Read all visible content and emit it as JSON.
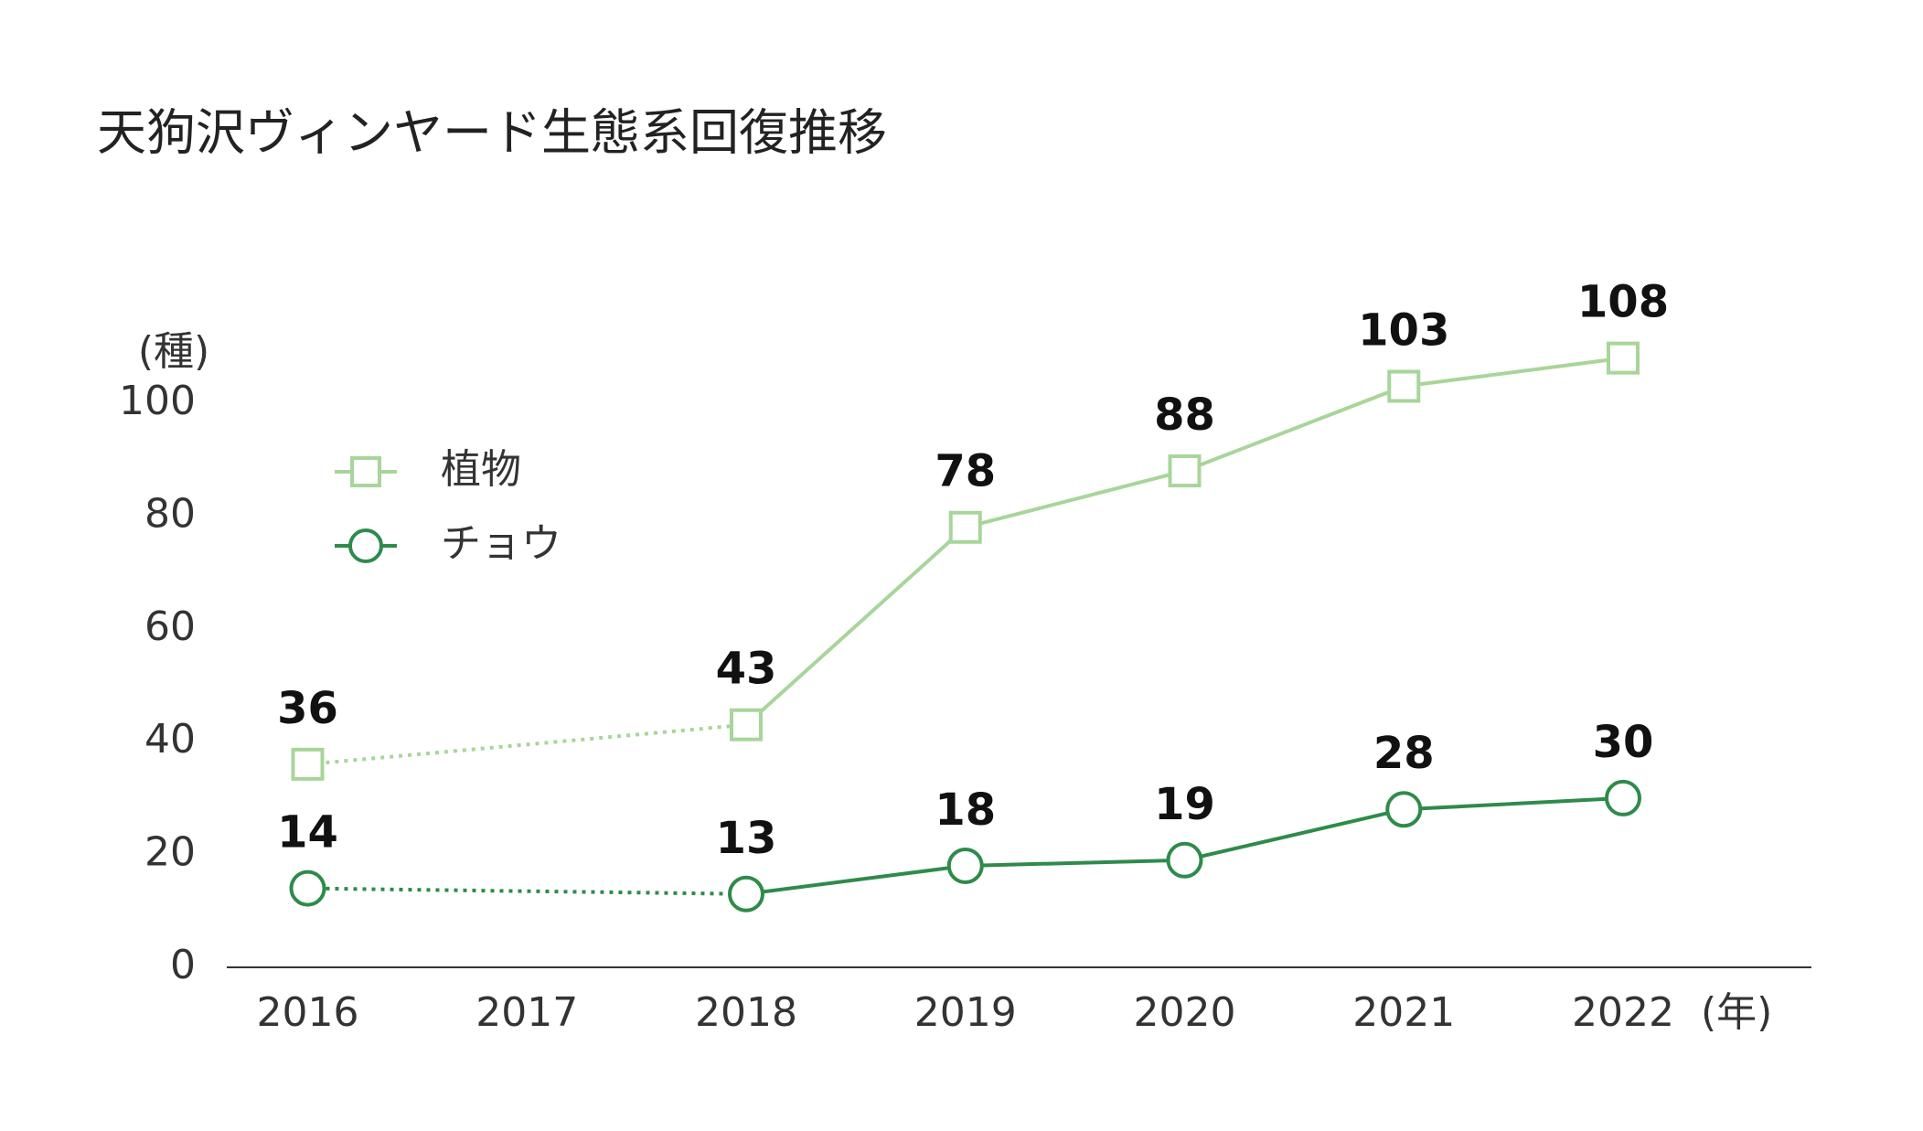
{
  "chart_data": {
    "type": "line",
    "title": "天狗沢ヴィンヤード生態系回復推移",
    "y_unit_label": "(種)",
    "x_unit_label": "(年)",
    "categories": [
      "2016",
      "2017",
      "2018",
      "2019",
      "2020",
      "2021",
      "2022"
    ],
    "series": [
      {
        "name": "植物",
        "color": "#a8d59a",
        "marker": "square",
        "values": [
          36,
          null,
          43,
          78,
          88,
          103,
          108
        ]
      },
      {
        "name": "チョウ",
        "color": "#2e8b4a",
        "marker": "circle",
        "values": [
          14,
          null,
          13,
          18,
          19,
          28,
          30
        ]
      }
    ],
    "ylim": [
      0,
      110
    ],
    "yticks": [
      0,
      20,
      40,
      60,
      80,
      100
    ],
    "gap_style": "dotted",
    "legend": "upper left"
  }
}
